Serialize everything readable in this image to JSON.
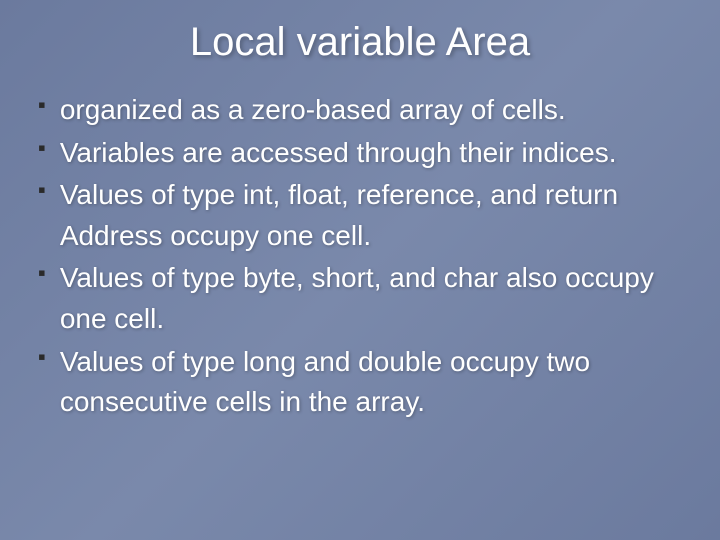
{
  "slide": {
    "title": "Local variable  Area",
    "bullets": [
      "organized as a zero-based array of cells.",
      "Variables are accessed through their indices.",
      "Values of type int, float, reference, and return Address occupy one cell.",
      "Values of type byte, short, and char also occupy one cell.",
      "Values of type long and double occupy two consecutive cells in the array."
    ],
    "background_gradient": [
      "#6b7a9e",
      "#7a89ab",
      "#6b7a9e"
    ],
    "text_color": "#ffffff",
    "bullet_marker_color": "#2a2a2a",
    "title_fontsize": 40,
    "body_fontsize": 28
  }
}
